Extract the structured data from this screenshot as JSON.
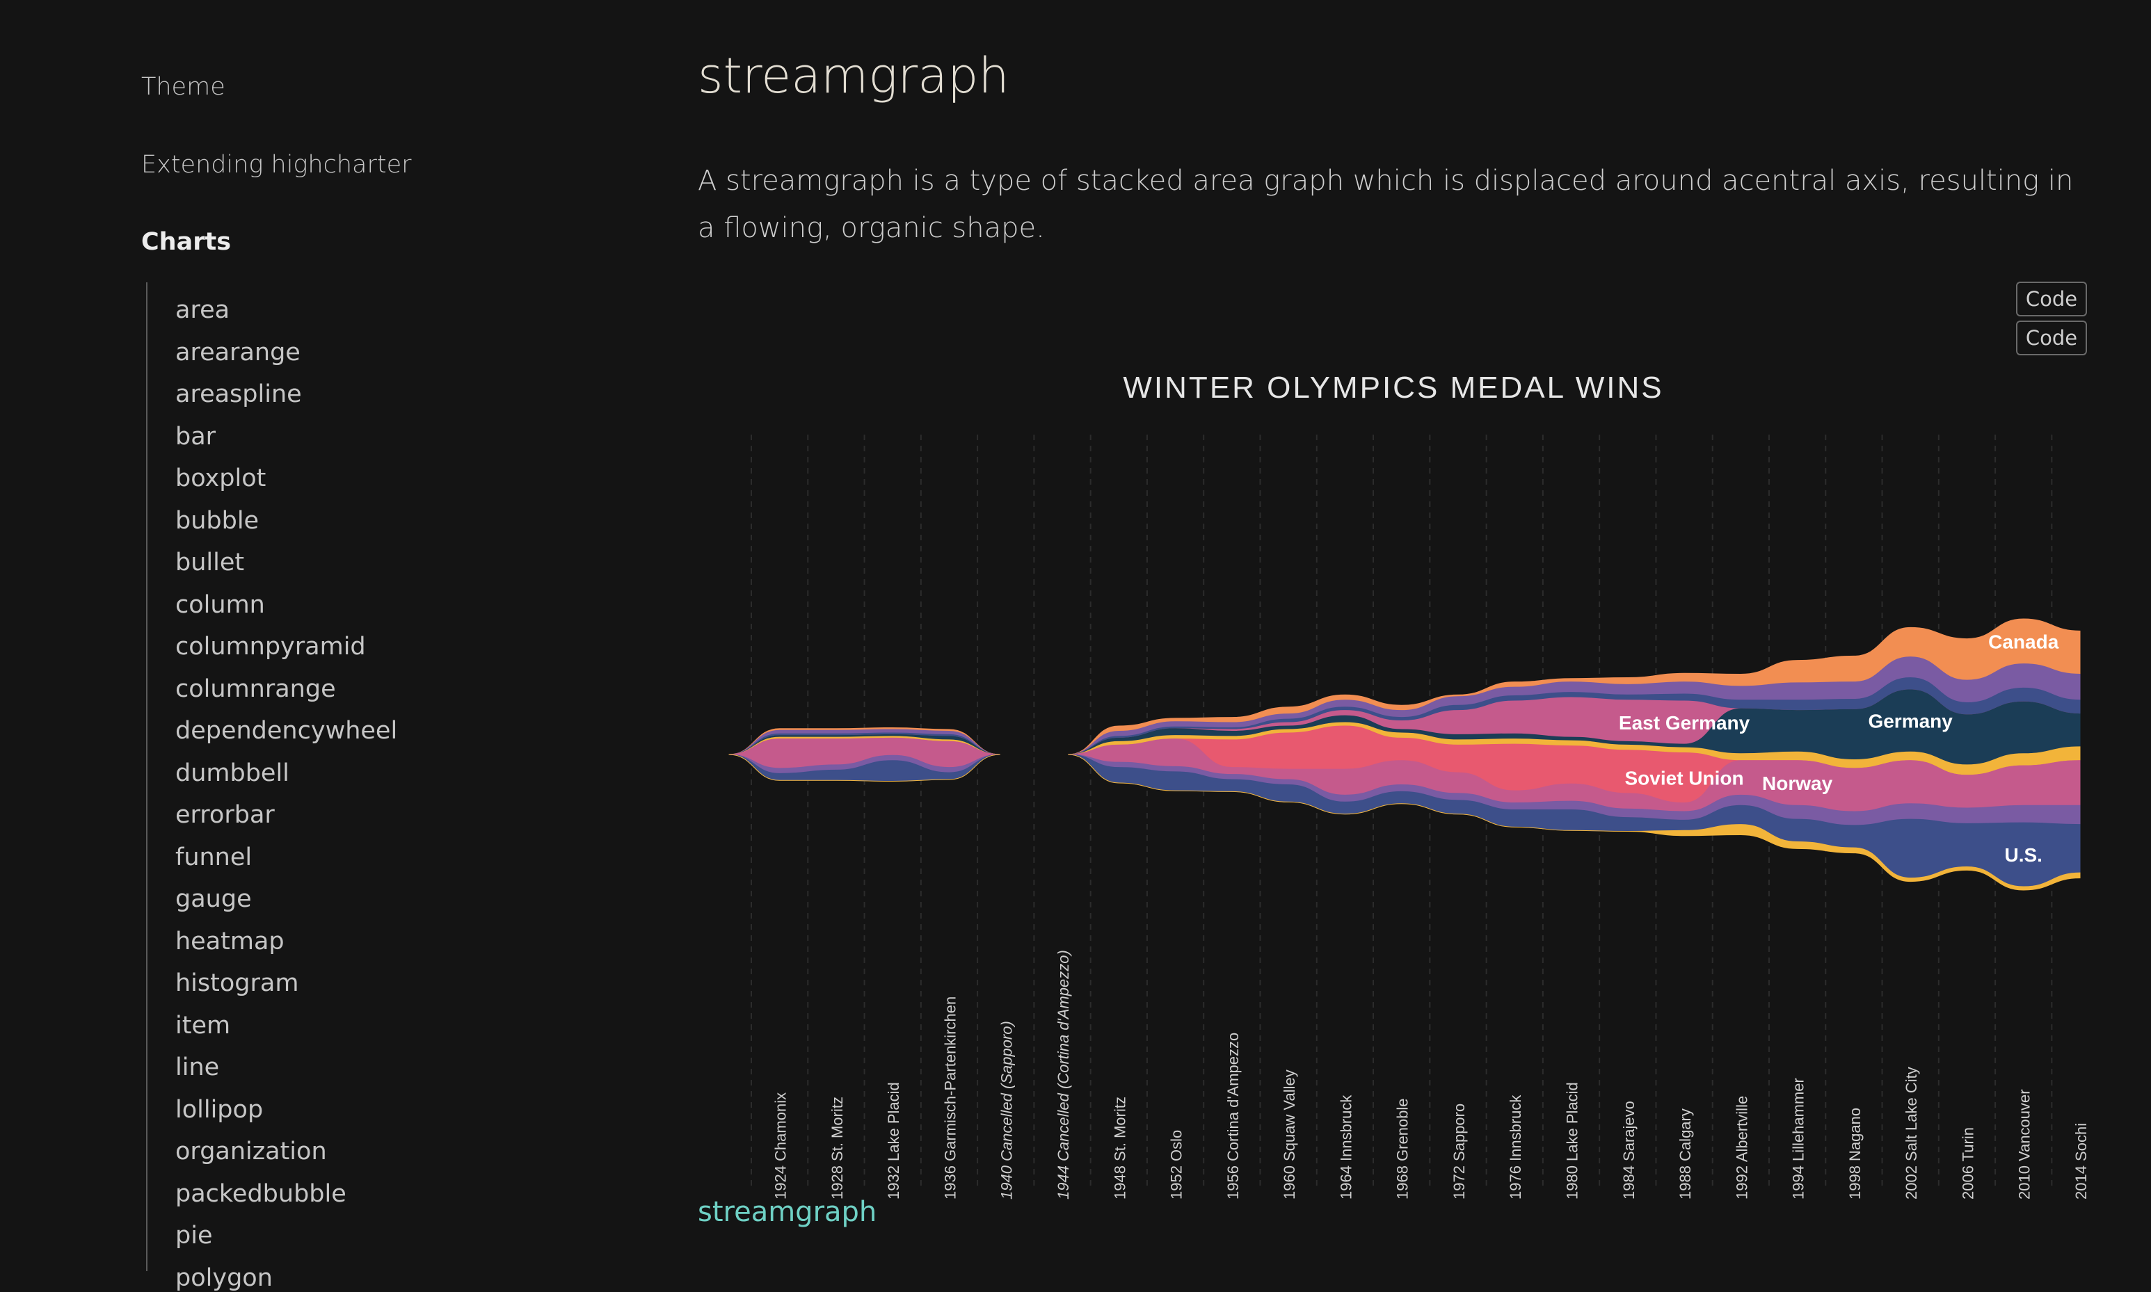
{
  "sidebar": {
    "links": [
      {
        "label": "Theme"
      },
      {
        "label": "Extending highcharter"
      }
    ],
    "section_heading": "Charts",
    "chart_items": [
      "area",
      "arearange",
      "areaspline",
      "bar",
      "boxplot",
      "bubble",
      "bullet",
      "column",
      "columnpyramid",
      "columnrange",
      "dependencywheel",
      "dumbbell",
      "errorbar",
      "funnel",
      "gauge",
      "heatmap",
      "histogram",
      "item",
      "line",
      "lollipop",
      "organization",
      "packedbubble",
      "pie",
      "polygon"
    ]
  },
  "page": {
    "title": "streamgraph",
    "description": "A streamgraph is a type of stacked area graph which is displaced around acentral axis, resulting in a flowing, organic shape.",
    "code_buttons": [
      "Code",
      "Code"
    ],
    "footer_link": "streamgraph"
  },
  "colors": {
    "background": "#141414",
    "link_accent": "#6fd1c5",
    "palette": [
      "#f28e52",
      "#7a5ba3",
      "#3d4f8a",
      "#1b3d56",
      "#f2b43a",
      "#e8596f",
      "#c55a8c",
      "#2f3b6e"
    ]
  },
  "chart_data": {
    "type": "area",
    "subtype": "streamgraph",
    "title": "WINTER OLYMPICS MEDAL WINS",
    "categories": [
      "1924 Chamonix",
      "1928 St. Moritz",
      "1932 Lake Placid",
      "1936 Garmisch-Partenkirchen",
      "1940 Cancelled (Sapporo)",
      "1944 Cancelled (Cortina d'Ampezzo)",
      "1948 St. Moritz",
      "1952 Oslo",
      "1956 Cortina d'Ampezzo",
      "1960 Squaw Valley",
      "1964 Innsbruck",
      "1968 Grenoble",
      "1972 Sapporo",
      "1976 Innsbruck",
      "1980 Lake Placid",
      "1984 Sarajevo",
      "1988 Calgary",
      "1992 Albertville",
      "1994 Lillehammer",
      "1998 Nagano",
      "2002 Salt Lake City",
      "2006 Turin",
      "2010 Vancouver",
      "2014 Sochi"
    ],
    "italic_categories": [
      4,
      5
    ],
    "series": [
      {
        "name": "Canada",
        "color": "#f28e52",
        "values": [
          1,
          1,
          1,
          1,
          null,
          null,
          3,
          2,
          3,
          4,
          3,
          3,
          1,
          3,
          2,
          4,
          5,
          7,
          13,
          15,
          17,
          24,
          26,
          25
        ]
      },
      {
        "name": "",
        "color": "#7a5ba3",
        "values": [
          2,
          2,
          2,
          2,
          null,
          null,
          3,
          3,
          3,
          3,
          4,
          4,
          5,
          5,
          6,
          6,
          7,
          8,
          10,
          10,
          12,
          13,
          14,
          15
        ]
      },
      {
        "name": "",
        "color": "#3d4f8a",
        "values": [
          1,
          1,
          1,
          1,
          null,
          null,
          1,
          1,
          1,
          2,
          2,
          2,
          3,
          3,
          3,
          3,
          4,
          5,
          6,
          6,
          7,
          7,
          8,
          8
        ]
      },
      {
        "name": "East Germany",
        "color": "#c55a8c",
        "values": [
          0,
          0,
          0,
          0,
          null,
          null,
          0,
          0,
          1,
          2,
          3,
          5,
          14,
          19,
          23,
          24,
          25,
          0,
          0,
          0,
          0,
          0,
          0,
          0
        ]
      },
      {
        "name": "Germany",
        "color": "#1b3d56",
        "values": [
          1,
          1,
          1,
          2,
          null,
          null,
          2,
          4,
          3,
          2,
          4,
          2,
          3,
          3,
          2,
          2,
          2,
          26,
          24,
          29,
          36,
          29,
          30,
          19
        ]
      },
      {
        "name": "",
        "color": "#f2b43a",
        "values": [
          1,
          1,
          1,
          1,
          null,
          null,
          2,
          2,
          2,
          2,
          2,
          3,
          3,
          3,
          3,
          3,
          3,
          4,
          5,
          5,
          5,
          6,
          7,
          8
        ]
      },
      {
        "name": "Soviet Union",
        "color": "#e8596f",
        "values": [
          0,
          0,
          0,
          0,
          null,
          null,
          0,
          0,
          16,
          21,
          25,
          13,
          16,
          27,
          22,
          25,
          29,
          0,
          0,
          0,
          0,
          0,
          0,
          0
        ]
      },
      {
        "name": "Norway",
        "color": "#c55a8c",
        "values": [
          17,
          15,
          10,
          15,
          null,
          null,
          10,
          16,
          4,
          6,
          15,
          14,
          12,
          7,
          10,
          9,
          5,
          20,
          26,
          25,
          25,
          19,
          23,
          26
        ]
      },
      {
        "name": "",
        "color": "#7a5ba3",
        "values": [
          3,
          3,
          3,
          3,
          null,
          null,
          3,
          3,
          3,
          3,
          4,
          4,
          4,
          4,
          5,
          5,
          5,
          6,
          8,
          8,
          9,
          9,
          10,
          11
        ]
      },
      {
        "name": "U.S.",
        "color": "#3d4f8a",
        "values": [
          4,
          6,
          12,
          4,
          null,
          null,
          9,
          11,
          7,
          10,
          7,
          7,
          8,
          10,
          12,
          8,
          6,
          11,
          13,
          13,
          34,
          25,
          37,
          28
        ]
      },
      {
        "name": "",
        "color": "#f2b43a",
        "values": [
          0,
          0,
          0,
          0,
          null,
          null,
          0,
          0,
          0,
          0,
          0,
          0,
          0,
          0,
          0,
          0,
          3,
          6,
          4,
          3,
          2,
          2,
          2,
          3
        ]
      }
    ],
    "series_labels_shown": [
      "Canada",
      "East Germany",
      "Germany",
      "Soviet Union",
      "Norway",
      "U.S."
    ],
    "grid": "vertical dashed",
    "legend": "none",
    "xlabel": "",
    "ylabel": ""
  }
}
